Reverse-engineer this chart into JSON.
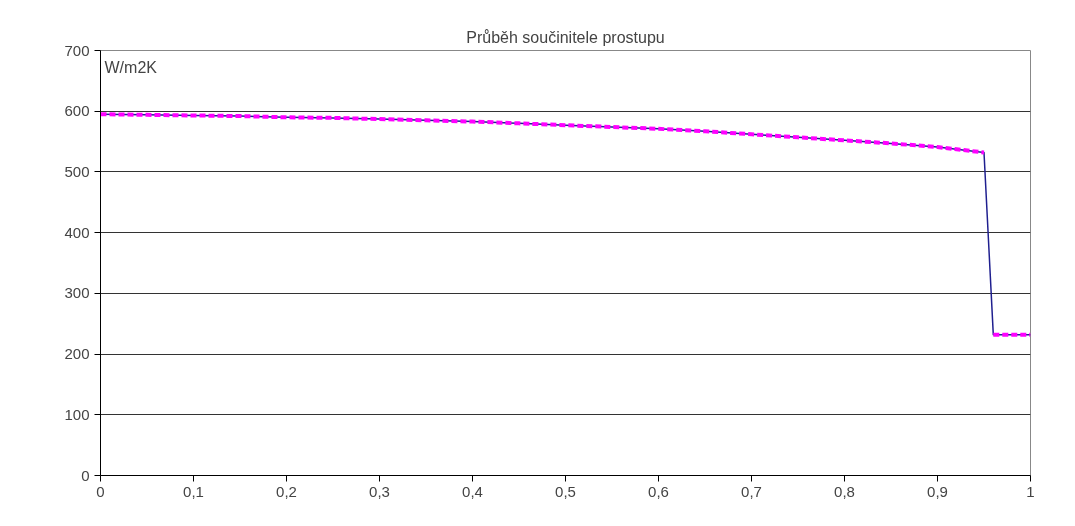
{
  "chart_data": {
    "type": "line",
    "title": "Průběh součinitele prostupu",
    "ylabel": "W/m2K",
    "x": [
      0,
      0.05,
      0.1,
      0.15,
      0.2,
      0.25,
      0.3,
      0.35,
      0.4,
      0.45,
      0.5,
      0.55,
      0.6,
      0.65,
      0.7,
      0.75,
      0.8,
      0.85,
      0.9,
      0.95,
      0.96,
      1
    ],
    "series": [
      {
        "color": "#1f1f8f",
        "line_style": "solid",
        "values": [
          595,
          594,
          593,
          592,
          590,
          589,
          587,
          585,
          583,
          580,
          577,
          574,
          571,
          567,
          562,
          557,
          552,
          547,
          541,
          532,
          232,
          232
        ]
      },
      {
        "color": "#ff00ff",
        "line_style": "dashed",
        "x": [
          0,
          0.05,
          0.1,
          0.15,
          0.2,
          0.25,
          0.3,
          0.35,
          0.4,
          0.45,
          0.5,
          0.55,
          0.6,
          0.65,
          0.7,
          0.75,
          0.8,
          0.85,
          0.9,
          0.95,
          0.955,
          0.96,
          1
        ],
        "values": [
          595,
          594,
          593,
          592,
          590,
          589,
          587,
          585,
          583,
          580,
          577,
          574,
          571,
          567,
          562,
          557,
          552,
          547,
          541,
          532,
          null,
          232,
          232
        ]
      }
    ],
    "xlim": [
      0,
      1
    ],
    "ylim": [
      0,
      700
    ],
    "xticks": [
      0,
      {
        "value": 0.1,
        "label": "0,1"
      },
      {
        "value": 0.2,
        "label": "0,2"
      },
      {
        "value": 0.3,
        "label": "0,3"
      },
      {
        "value": 0.4,
        "label": "0,4"
      },
      {
        "value": 0.5,
        "label": "0,5"
      },
      {
        "value": 0.6,
        "label": "0,6"
      },
      {
        "value": 0.7,
        "label": "0,7"
      },
      {
        "value": 0.8,
        "label": "0,8"
      },
      {
        "value": 0.9,
        "label": "0,9"
      },
      1
    ],
    "yticks": [
      0,
      100,
      200,
      300,
      400,
      500,
      600,
      700
    ],
    "grid": "y"
  }
}
